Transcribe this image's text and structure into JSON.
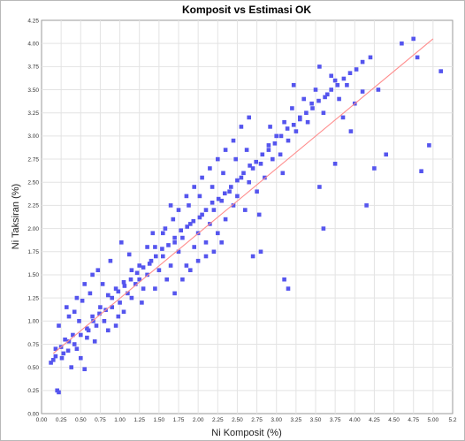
{
  "chart_data": {
    "type": "scatter",
    "title": "Komposit vs Estimasi OK",
    "xlabel": "Ni Komposit  (%)",
    "ylabel": "Ni Taksiran (%)",
    "xlim": [
      0,
      5.25
    ],
    "ylim": [
      0,
      4.25
    ],
    "x_ticks": [
      "0.00",
      "0.25",
      "0.50",
      "0.75",
      "1.00",
      "1.25",
      "1.50",
      "1.75",
      "2.00",
      "2.25",
      "2.50",
      "2.75",
      "3.00",
      "3.25",
      "3.50",
      "3.75",
      "4.00",
      "4.25",
      "4.50",
      "4.75",
      "5.00",
      "5.2"
    ],
    "y_ticks": [
      "0.00",
      "0.25",
      "0.50",
      "0.75",
      "1.00",
      "1.25",
      "1.50",
      "1.75",
      "2.00",
      "2.25",
      "2.50",
      "2.75",
      "3.00",
      "3.25",
      "3.50",
      "3.75",
      "4.00",
      "4.25"
    ],
    "grid": true,
    "point_color": "#5555ee",
    "trend_color": "#ff8c8c",
    "trendline": {
      "x": [
        0.15,
        5.0
      ],
      "y": [
        0.65,
        4.05
      ]
    },
    "series": [
      {
        "values": [
          [
            0.2,
            0.25
          ],
          [
            0.22,
            0.23
          ],
          [
            0.15,
            0.58
          ],
          [
            0.18,
            0.62
          ],
          [
            0.12,
            0.55
          ],
          [
            0.25,
            0.72
          ],
          [
            0.3,
            0.8
          ],
          [
            0.28,
            0.65
          ],
          [
            0.35,
            0.78
          ],
          [
            0.4,
            0.85
          ],
          [
            0.22,
            0.95
          ],
          [
            0.45,
            0.7
          ],
          [
            0.5,
            0.6
          ],
          [
            0.38,
            0.5
          ],
          [
            0.55,
            0.48
          ],
          [
            0.6,
            0.9
          ],
          [
            0.48,
            1.0
          ],
          [
            0.65,
            1.05
          ],
          [
            0.58,
            0.82
          ],
          [
            0.7,
            0.95
          ],
          [
            0.42,
            1.1
          ],
          [
            0.32,
            1.15
          ],
          [
            0.52,
            1.22
          ],
          [
            0.75,
            1.15
          ],
          [
            0.8,
            1.0
          ],
          [
            0.68,
            0.78
          ],
          [
            0.85,
            1.28
          ],
          [
            0.9,
            1.15
          ],
          [
            0.95,
            1.35
          ],
          [
            0.78,
            1.4
          ],
          [
            0.62,
            1.3
          ],
          [
            0.72,
            1.55
          ],
          [
            0.88,
            1.65
          ],
          [
            1.0,
            1.2
          ],
          [
            1.05,
            1.42
          ],
          [
            1.1,
            1.3
          ],
          [
            0.98,
            1.05
          ],
          [
            1.15,
            1.55
          ],
          [
            1.2,
            1.4
          ],
          [
            1.25,
            1.6
          ],
          [
            1.12,
            1.72
          ],
          [
            1.02,
            1.85
          ],
          [
            1.3,
            1.35
          ],
          [
            1.35,
            1.5
          ],
          [
            1.4,
            1.65
          ],
          [
            1.28,
            1.2
          ],
          [
            1.45,
            1.8
          ],
          [
            1.5,
            1.55
          ],
          [
            1.55,
            1.7
          ],
          [
            1.42,
            1.95
          ],
          [
            1.6,
            1.45
          ],
          [
            1.65,
            1.6
          ],
          [
            1.7,
            1.85
          ],
          [
            1.58,
            2.0
          ],
          [
            1.75,
            1.75
          ],
          [
            1.8,
            1.9
          ],
          [
            1.85,
            1.6
          ],
          [
            1.68,
            2.1
          ],
          [
            1.9,
            2.05
          ],
          [
            1.95,
            1.8
          ],
          [
            2.0,
            1.95
          ],
          [
            1.88,
            2.25
          ],
          [
            2.05,
            2.15
          ],
          [
            2.1,
            1.85
          ],
          [
            2.15,
            2.05
          ],
          [
            2.02,
            2.35
          ],
          [
            2.2,
            2.2
          ],
          [
            2.25,
            1.95
          ],
          [
            2.3,
            2.3
          ],
          [
            2.18,
            2.45
          ],
          [
            2.35,
            2.1
          ],
          [
            2.4,
            2.4
          ],
          [
            2.45,
            2.25
          ],
          [
            2.32,
            2.6
          ],
          [
            2.5,
            2.35
          ],
          [
            2.55,
            2.55
          ],
          [
            2.6,
            2.2
          ],
          [
            2.48,
            2.75
          ],
          [
            2.65,
            2.5
          ],
          [
            2.7,
            2.65
          ],
          [
            2.75,
            2.4
          ],
          [
            2.62,
            2.85
          ],
          [
            2.8,
            2.7
          ],
          [
            2.85,
            2.55
          ],
          [
            2.9,
            2.9
          ],
          [
            2.78,
            2.15
          ],
          [
            2.95,
            2.75
          ],
          [
            3.0,
            3.0
          ],
          [
            3.05,
            2.8
          ],
          [
            2.92,
            3.1
          ],
          [
            3.1,
            3.15
          ],
          [
            3.15,
            2.95
          ],
          [
            3.2,
            3.3
          ],
          [
            3.08,
            2.6
          ],
          [
            3.25,
            3.05
          ],
          [
            3.3,
            3.2
          ],
          [
            3.35,
            3.4
          ],
          [
            3.22,
            3.55
          ],
          [
            3.4,
            3.15
          ],
          [
            3.45,
            3.35
          ],
          [
            3.5,
            3.5
          ],
          [
            3.55,
            3.75
          ],
          [
            3.6,
            3.25
          ],
          [
            3.65,
            3.45
          ],
          [
            3.7,
            3.65
          ],
          [
            3.75,
            3.6
          ],
          [
            3.8,
            3.4
          ],
          [
            3.85,
            3.2
          ],
          [
            3.9,
            3.55
          ],
          [
            3.95,
            3.05
          ],
          [
            4.0,
            3.35
          ],
          [
            4.1,
            3.8
          ],
          [
            4.2,
            3.85
          ],
          [
            4.3,
            3.5
          ],
          [
            4.4,
            2.8
          ],
          [
            4.15,
            2.25
          ],
          [
            4.25,
            2.65
          ],
          [
            3.55,
            2.45
          ],
          [
            3.6,
            2.0
          ],
          [
            3.1,
            1.45
          ],
          [
            3.15,
            1.35
          ],
          [
            2.8,
            1.75
          ],
          [
            2.7,
            1.7
          ],
          [
            4.6,
            4.0
          ],
          [
            4.75,
            4.05
          ],
          [
            4.8,
            3.85
          ],
          [
            4.85,
            2.62
          ],
          [
            5.1,
            3.7
          ],
          [
            4.95,
            2.9
          ],
          [
            3.75,
            2.7
          ],
          [
            0.35,
            1.05
          ],
          [
            0.45,
            1.25
          ],
          [
            0.55,
            1.4
          ],
          [
            0.65,
            1.5
          ],
          [
            0.85,
            0.9
          ],
          [
            0.95,
            0.95
          ],
          [
            1.05,
            1.1
          ],
          [
            1.15,
            1.25
          ],
          [
            1.25,
            1.45
          ],
          [
            1.35,
            1.8
          ],
          [
            1.45,
            1.35
          ],
          [
            1.55,
            1.95
          ],
          [
            1.65,
            2.25
          ],
          [
            1.75,
            2.2
          ],
          [
            1.85,
            2.35
          ],
          [
            1.95,
            2.45
          ],
          [
            2.05,
            2.55
          ],
          [
            2.15,
            2.65
          ],
          [
            2.25,
            2.75
          ],
          [
            2.35,
            2.85
          ],
          [
            2.45,
            2.95
          ],
          [
            2.55,
            3.1
          ],
          [
            2.65,
            3.2
          ],
          [
            1.7,
            1.3
          ],
          [
            1.8,
            1.45
          ],
          [
            1.9,
            1.55
          ],
          [
            2.0,
            1.65
          ],
          [
            2.1,
            1.7
          ],
          [
            2.2,
            1.75
          ],
          [
            2.3,
            1.85
          ],
          [
            0.18,
            0.7
          ],
          [
            0.26,
            0.6
          ],
          [
            0.34,
            0.68
          ],
          [
            0.42,
            0.75
          ],
          [
            0.5,
            0.85
          ],
          [
            0.58,
            0.92
          ],
          [
            0.66,
            1.0
          ],
          [
            0.74,
            1.08
          ],
          [
            0.82,
            1.12
          ],
          [
            0.9,
            1.25
          ],
          [
            0.98,
            1.32
          ],
          [
            1.06,
            1.38
          ],
          [
            1.14,
            1.45
          ],
          [
            1.22,
            1.52
          ],
          [
            1.3,
            1.58
          ],
          [
            1.38,
            1.62
          ],
          [
            1.46,
            1.7
          ],
          [
            1.54,
            1.78
          ],
          [
            1.62,
            1.82
          ],
          [
            1.7,
            1.9
          ],
          [
            1.78,
            1.98
          ],
          [
            1.86,
            2.02
          ],
          [
            1.94,
            2.08
          ],
          [
            2.02,
            2.12
          ],
          [
            2.1,
            2.2
          ],
          [
            2.18,
            2.28
          ],
          [
            2.26,
            2.32
          ],
          [
            2.34,
            2.38
          ],
          [
            2.42,
            2.45
          ],
          [
            2.5,
            2.52
          ],
          [
            2.58,
            2.6
          ],
          [
            2.66,
            2.68
          ],
          [
            2.74,
            2.72
          ],
          [
            2.82,
            2.8
          ],
          [
            2.9,
            2.85
          ],
          [
            2.98,
            2.92
          ],
          [
            3.06,
            3.0
          ],
          [
            3.14,
            3.08
          ],
          [
            3.22,
            3.12
          ],
          [
            3.3,
            3.18
          ],
          [
            3.38,
            3.25
          ],
          [
            3.46,
            3.3
          ],
          [
            3.54,
            3.38
          ],
          [
            3.62,
            3.42
          ],
          [
            3.7,
            3.5
          ],
          [
            3.78,
            3.55
          ],
          [
            3.86,
            3.62
          ],
          [
            3.94,
            3.68
          ],
          [
            4.02,
            3.72
          ],
          [
            4.1,
            3.48
          ]
        ]
      }
    ]
  }
}
